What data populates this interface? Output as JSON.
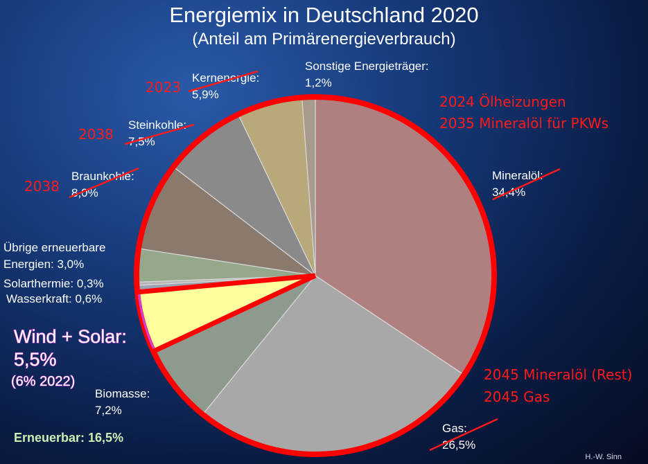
{
  "chart_data": {
    "type": "pie",
    "title": "Energiemix in Deutschland 2020",
    "subtitle": "(Anteil am Primärenergieverbrauch)",
    "slices": [
      {
        "label": "Mineralöl:",
        "value": 34.4,
        "value_text": "34,4%",
        "color": "#b08080",
        "strike": true
      },
      {
        "label": "Gas:",
        "value": 26.5,
        "value_text": "26,5%",
        "color": "#a8a8a8",
        "strike": true
      },
      {
        "label": "Biomasse:",
        "value": 7.2,
        "value_text": "7,2%",
        "color": "#8f9a8e",
        "strike": false
      },
      {
        "label": "Wind + Solar:",
        "value": 5.5,
        "value_text": "5,5%",
        "color": "#ffff9e",
        "strike": false
      },
      {
        "label": "Wasserkraft:",
        "value": 0.6,
        "value_text": "0,6%",
        "color": "#9aa4b4",
        "strike": false
      },
      {
        "label": "Solarthermie:",
        "value": 0.3,
        "value_text": "0,3%",
        "color": "#b6b6b6",
        "strike": false
      },
      {
        "label": "Übrige erneuerbare Energien:",
        "value": 3.0,
        "value_text": "3,0%",
        "color": "#95a88c",
        "strike": false
      },
      {
        "label": "Braunkohle:",
        "value": 8.0,
        "value_text": "8,0%",
        "color": "#8a7a6e",
        "strike": true
      },
      {
        "label": "Steinkohle:",
        "value": 7.5,
        "value_text": "7,5%",
        "color": "#8a8a8a",
        "strike": true
      },
      {
        "label": "Kernenergie:",
        "value": 5.9,
        "value_text": "5,9%",
        "color": "#b8a87a",
        "strike": true
      },
      {
        "label": "Sonstige Energieträger:",
        "value": 1.2,
        "value_text": "1,2%",
        "color": "#a89a8c",
        "strike": false
      }
    ],
    "wind_solar_note": "(6% 2022)",
    "renewable_total": "Erneuerbar: 16,5%",
    "phaseout_annotations": {
      "kernenergie": "2023",
      "steinkohle": "2038",
      "braunkohle": "2038",
      "oel_1": "2024 Ölheizungen",
      "oel_2": "2035 Mineralöl für PKWs",
      "gas_1": "2045 Mineralöl (Rest)",
      "gas_2": "2045 Gas"
    },
    "credit": "H.-W. Sinn",
    "colors": {
      "annotation_red": "#ff1a1a",
      "outline_red": "#ff0000",
      "renewable_green": "#c8f0b0",
      "wind_solar_glow": "#d040e0"
    }
  }
}
